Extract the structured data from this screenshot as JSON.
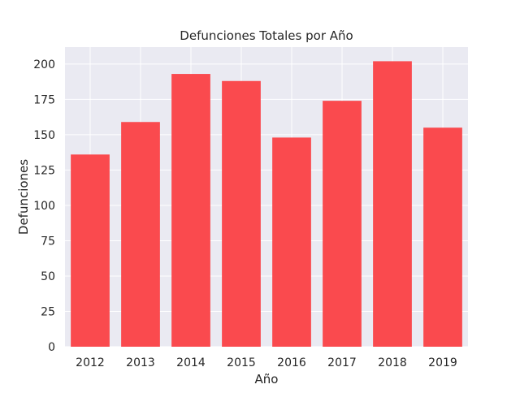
{
  "chart_data": {
    "type": "bar",
    "title": "Defunciones Totales por Año",
    "xlabel": "Año",
    "ylabel": "Defunciones",
    "categories": [
      "2012",
      "2013",
      "2014",
      "2015",
      "2016",
      "2017",
      "2018",
      "2019"
    ],
    "values": [
      136,
      159,
      193,
      188,
      148,
      174,
      202,
      155
    ],
    "ylim": [
      0,
      212
    ],
    "yticks": [
      0,
      25,
      50,
      75,
      100,
      125,
      150,
      175,
      200
    ],
    "grid": true,
    "colors": {
      "bar": "#fa4a4e",
      "plot_background": "#eaeaf2",
      "grid": "#ffffff",
      "text": "#262626"
    }
  }
}
